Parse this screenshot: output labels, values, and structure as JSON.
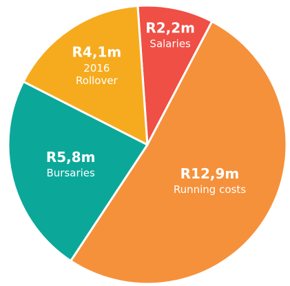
{
  "chart_data": {
    "type": "pie",
    "categories": [
      "Salaries",
      "Running costs",
      "Bursaries",
      "2016 Rollover"
    ],
    "values": [
      2.2,
      12.9,
      5.8,
      4.1
    ],
    "value_labels": [
      "R2,2m",
      "R12,9m",
      "R5,8m",
      "R4,1m"
    ],
    "colors": [
      "#ef4f45",
      "#f5913b",
      "#0ba89a",
      "#f6ab1e"
    ]
  }
}
